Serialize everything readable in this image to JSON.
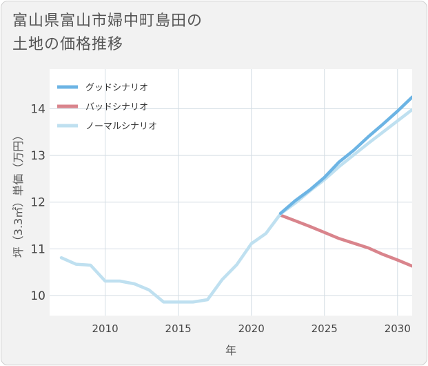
{
  "title_lines": [
    "富山県富山市婦中町島田の",
    "土地の価格推移"
  ],
  "chart_data": {
    "type": "line",
    "xlabel": "年",
    "ylabel": "坪（3.3㎡）単価（万円）",
    "xlim": [
      2006.2,
      2031
    ],
    "ylim": [
      9.57,
      14.85
    ],
    "xticks": [
      2010,
      2015,
      2020,
      2025,
      2030
    ],
    "yticks": [
      10,
      11,
      12,
      13,
      14
    ],
    "grid": true,
    "legend_position": "top-left",
    "series": [
      {
        "name": "グッドシナリオ",
        "color": "#6cb4e4",
        "x": [
          2022,
          2023,
          2024,
          2025,
          2026,
          2027,
          2028,
          2029,
          2030,
          2031
        ],
        "y": [
          11.76,
          12.03,
          12.26,
          12.53,
          12.86,
          13.11,
          13.4,
          13.67,
          13.95,
          14.25
        ]
      },
      {
        "name": "バッドシナリオ",
        "color": "#d9848c",
        "x": [
          2022,
          2023,
          2024,
          2025,
          2026,
          2027,
          2028,
          2029,
          2030,
          2031
        ],
        "y": [
          11.72,
          11.6,
          11.48,
          11.35,
          11.22,
          11.12,
          11.02,
          10.88,
          10.76,
          10.63
        ]
      },
      {
        "name": "ノーマルシナリオ",
        "color": "#bfe0f0",
        "x": [
          2007,
          2008,
          2009,
          2010,
          2011,
          2012,
          2013,
          2014,
          2015,
          2016,
          2017,
          2018,
          2019,
          2020,
          2021,
          2022,
          2023,
          2024,
          2025,
          2026,
          2027,
          2028,
          2029,
          2030,
          2031
        ],
        "y": [
          10.81,
          10.67,
          10.65,
          10.31,
          10.31,
          10.25,
          10.12,
          9.86,
          9.86,
          9.86,
          9.91,
          10.34,
          10.66,
          11.11,
          11.33,
          11.75,
          11.98,
          12.24,
          12.48,
          12.76,
          13.01,
          13.26,
          13.5,
          13.74,
          13.98
        ]
      }
    ]
  }
}
